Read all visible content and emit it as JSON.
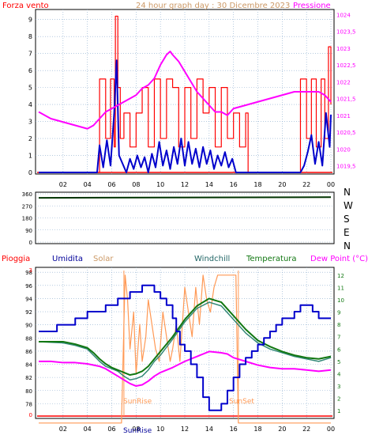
{
  "panel1": {
    "title": "24 hour graph day : 30 Dicembre 2023",
    "left_label": "Forza vento",
    "right_label": "Pressione",
    "y_left_ticks": [
      "0",
      "1",
      "2",
      "3",
      "4",
      "5",
      "6",
      "7",
      "8",
      "9"
    ],
    "y_right_ticks": [
      "1019,5",
      "1020",
      "1020,5",
      "1021",
      "1021,5",
      "1022",
      "1022,5",
      "1023",
      "1023,5",
      "1024"
    ]
  },
  "panel2": {
    "y_ticks": [
      "0",
      "90",
      "180",
      "270",
      "360"
    ],
    "compass": [
      "N",
      "W",
      "S",
      "E",
      "N"
    ]
  },
  "panel3": {
    "legend": [
      "Pioggia",
      "Umidita",
      "Solar",
      "Windchill",
      "Temperatura",
      "Dew Point (°C)"
    ],
    "y_left_ticks": [
      "0",
      "78",
      "80",
      "82",
      "84",
      "86",
      "88",
      "90",
      "92",
      "94",
      "96",
      "98"
    ],
    "y_right_ticks": [
      "1",
      "2",
      "3",
      "4",
      "5",
      "6",
      "7",
      "8",
      "9",
      "10",
      "11",
      "12"
    ],
    "sunrise": "SunRise",
    "sunset": "SunSet"
  },
  "x_ticks": [
    "02",
    "04",
    "06",
    "08",
    "10",
    "12",
    "14",
    "16",
    "18",
    "20",
    "22",
    "00"
  ],
  "bottom_label": "SunRise",
  "colors": {
    "wind_speed": "#ff0000",
    "wind_gust": "#0000cc",
    "pressure": "#ff00ff",
    "direction": "#003300",
    "rain": "#ff0000",
    "humidity": "#0000cc",
    "solar": "#ff9955",
    "windchill": "#338877",
    "temperature": "#117711",
    "dewpoint": "#ff00ff",
    "grid": "#88aacc"
  },
  "chart_data": [
    {
      "type": "line",
      "title": "24 hour graph day : 30 Dicembre 2023",
      "xlabel": "",
      "ylabel": "Forza vento",
      "ylabel_right": "Pressione",
      "ylim": [
        0,
        9.5
      ],
      "ylim_right": [
        1019.3,
        1024.1
      ],
      "series": [
        {
          "name": "Forza vento",
          "axis": "left",
          "x": [
            0,
            4.9,
            5.0,
            5.5,
            5.9,
            6.2,
            6.3,
            6.5,
            6.7,
            7.0,
            7.5,
            8.0,
            8.5,
            9.0,
            9.5,
            10.0,
            10.5,
            11.0,
            11.5,
            12.0,
            12.5,
            13.0,
            13.5,
            14.0,
            14.5,
            15.0,
            15.5,
            16.0,
            16.5,
            17.0,
            17.2,
            21.0,
            21.5,
            22.0,
            22.4,
            22.8,
            23.2,
            23.5,
            23.8,
            24.0
          ],
          "values": [
            0,
            0,
            5.5,
            2,
            5.5,
            1.5,
            9.2,
            5,
            2,
            3.5,
            1.5,
            3.5,
            5,
            1.5,
            5.5,
            2,
            5.5,
            5,
            1.5,
            5,
            2,
            5.5,
            3.5,
            5,
            1.5,
            5,
            2,
            3.5,
            1.5,
            3.5,
            0,
            0,
            5.5,
            2,
            5.5,
            1.5,
            5.5,
            2,
            7.4,
            4
          ]
        },
        {
          "name": "",
          "axis": "left",
          "x": [
            0,
            4.8,
            5.0,
            5.3,
            5.6,
            5.9,
            6.2,
            6.4,
            6.6,
            6.9,
            7.2,
            7.5,
            7.8,
            8.1,
            8.4,
            8.7,
            9.0,
            9.3,
            9.6,
            9.9,
            10.2,
            10.5,
            10.8,
            11.1,
            11.4,
            11.7,
            12.0,
            12.3,
            12.6,
            12.9,
            13.2,
            13.5,
            13.8,
            14.1,
            14.4,
            14.7,
            15.0,
            15.3,
            15.6,
            15.9,
            16.2,
            21.5,
            21.8,
            22.1,
            22.4,
            22.7,
            23.0,
            23.3,
            23.6,
            23.9,
            24.0
          ],
          "values": [
            0,
            0,
            1.6,
            0.3,
            1.9,
            0.4,
            3.5,
            6.6,
            1.0,
            0.5,
            0,
            0.8,
            0.2,
            1.0,
            0.3,
            0.9,
            0,
            1.1,
            0.3,
            1.8,
            0.4,
            1.3,
            0.2,
            1.5,
            0.5,
            2.0,
            0.4,
            1.8,
            0.5,
            1.4,
            0.3,
            1.5,
            0.5,
            1.3,
            0.2,
            1.0,
            0.4,
            1.2,
            0.3,
            0.8,
            0,
            0,
            0.4,
            1.2,
            2.2,
            0.5,
            1.8,
            0.4,
            3.5,
            1.5,
            3.4
          ]
        },
        {
          "name": "Pressione",
          "axis": "right",
          "x": [
            0,
            1,
            2,
            3,
            4,
            4.5,
            5,
            5.5,
            6,
            6.5,
            7,
            7.5,
            8,
            8.5,
            9,
            9.5,
            10,
            10.5,
            10.8,
            11,
            11.5,
            12,
            12.5,
            13,
            13.5,
            14,
            14.5,
            15,
            15.5,
            16,
            17,
            18,
            19,
            20,
            21,
            22,
            23,
            23.5,
            24
          ],
          "values": [
            1021.1,
            1020.9,
            1020.8,
            1020.7,
            1020.6,
            1020.7,
            1020.9,
            1021.1,
            1021.2,
            1021.3,
            1021.4,
            1021.5,
            1021.6,
            1021.8,
            1021.9,
            1022.1,
            1022.5,
            1022.8,
            1022.9,
            1022.8,
            1022.6,
            1022.3,
            1022.0,
            1021.7,
            1021.5,
            1021.3,
            1021.1,
            1021.1,
            1021.0,
            1021.2,
            1021.3,
            1021.4,
            1021.5,
            1021.6,
            1021.7,
            1021.7,
            1021.7,
            1021.6,
            1021.4
          ]
        }
      ]
    },
    {
      "type": "line",
      "title": "",
      "xlabel": "",
      "ylabel": "",
      "ylim": [
        0,
        360
      ],
      "series": [
        {
          "name": "",
          "x": [
            0,
            24
          ],
          "values": [
            330,
            335
          ]
        }
      ]
    },
    {
      "type": "line",
      "title": "",
      "xlabel": "",
      "ylabel": "",
      "ylim": [
        76,
        98.5
      ],
      "ylim_right": [
        0.5,
        12.5
      ],
      "series": [
        {
          "name": "Umidita",
          "axis": "left",
          "x": [
            0,
            0.5,
            1.5,
            2,
            3,
            3.5,
            4,
            5,
            5.5,
            6,
            6.5,
            7,
            7.5,
            8,
            8.5,
            9,
            9.5,
            10,
            10.5,
            11,
            11.3,
            11.6,
            12,
            12.5,
            13,
            13.5,
            14,
            14.5,
            15,
            15.5,
            16,
            16.5,
            17,
            17.5,
            18,
            18.5,
            19,
            19.5,
            20,
            21,
            21.5,
            22,
            22.5,
            23,
            24
          ],
          "values": [
            89,
            89,
            90,
            90,
            91,
            91,
            92,
            92,
            93,
            93,
            94,
            94,
            95,
            95,
            96,
            96,
            95,
            94,
            93,
            91,
            89,
            87,
            86,
            84,
            82,
            79,
            77,
            77,
            78,
            80,
            82,
            84,
            85,
            86,
            87,
            88,
            89,
            90,
            91,
            92,
            93,
            93,
            92,
            91,
            91
          ]
        },
        {
          "name": "Solar",
          "axis": "right",
          "x": [
            0,
            6.8,
            6.9,
            7.1,
            7.3,
            7.5,
            7.8,
            8,
            8.3,
            8.5,
            8.8,
            9,
            9.3,
            9.6,
            9.9,
            10.2,
            10.5,
            10.8,
            11,
            11.3,
            11.6,
            12,
            12.3,
            12.6,
            12.9,
            13.2,
            13.5,
            13.8,
            14.1,
            14.4,
            14.7,
            15,
            15.3,
            15.6,
            16,
            16.2,
            16.4,
            24
          ],
          "values": [
            0,
            0,
            4,
            12,
            10,
            6,
            9,
            4,
            8,
            5,
            7,
            10,
            8,
            6,
            5,
            9,
            7,
            5,
            6,
            8,
            5,
            11,
            9,
            7,
            11,
            8,
            12,
            10,
            9,
            11,
            12,
            12,
            12,
            12,
            12,
            12,
            0,
            0
          ]
        },
        {
          "name": "Windchill",
          "axis": "right",
          "x": [
            0,
            2,
            3,
            4,
            4.5,
            5,
            5.5,
            6,
            6.5,
            7,
            7.5,
            8,
            8.5,
            9,
            9.5,
            10,
            11,
            12,
            13,
            14,
            15,
            16,
            17,
            18,
            19,
            20,
            21,
            22,
            23,
            24
          ],
          "values": [
            6.6,
            6.5,
            6.3,
            6.0,
            5.5,
            5.0,
            4.6,
            4.4,
            4.2,
            3.8,
            3.5,
            3.6,
            3.8,
            4.3,
            5.0,
            5.5,
            6.8,
            8.2,
            9.3,
            9.8,
            9.5,
            8.4,
            7.3,
            6.5,
            6.0,
            5.7,
            5.4,
            5.2,
            5.0,
            5.3
          ]
        },
        {
          "name": "Temperatura",
          "axis": "right",
          "x": [
            0,
            2,
            3,
            4,
            4.5,
            5,
            5.5,
            6,
            6.5,
            7,
            7.5,
            8,
            8.5,
            9,
            9.5,
            10,
            11,
            12,
            13,
            14,
            15,
            16,
            17,
            18,
            19,
            20,
            21,
            22,
            23,
            24
          ],
          "values": [
            6.6,
            6.6,
            6.4,
            6.1,
            5.7,
            5.2,
            4.8,
            4.5,
            4.3,
            4.1,
            3.9,
            4.0,
            4.2,
            4.6,
            5.2,
            5.8,
            7.0,
            8.4,
            9.5,
            10.1,
            9.8,
            8.7,
            7.6,
            6.7,
            6.2,
            5.8,
            5.5,
            5.3,
            5.2,
            5.4
          ]
        },
        {
          "name": "Dew Point (°C)",
          "axis": "right",
          "x": [
            0,
            1,
            2,
            3,
            4,
            5,
            5.5,
            6,
            6.5,
            7,
            7.5,
            8,
            8.5,
            9,
            9.5,
            10,
            11,
            12,
            13,
            14,
            15,
            15.5,
            16,
            17,
            18,
            19,
            20,
            21,
            22,
            23,
            24
          ],
          "values": [
            5.0,
            5.0,
            4.9,
            4.9,
            4.8,
            4.6,
            4.4,
            4.1,
            3.8,
            3.5,
            3.2,
            3.0,
            3.1,
            3.4,
            3.8,
            4.1,
            4.5,
            5.0,
            5.4,
            5.8,
            5.7,
            5.6,
            5.3,
            5.0,
            4.7,
            4.5,
            4.4,
            4.4,
            4.3,
            4.2,
            4.3
          ]
        }
      ]
    }
  ]
}
